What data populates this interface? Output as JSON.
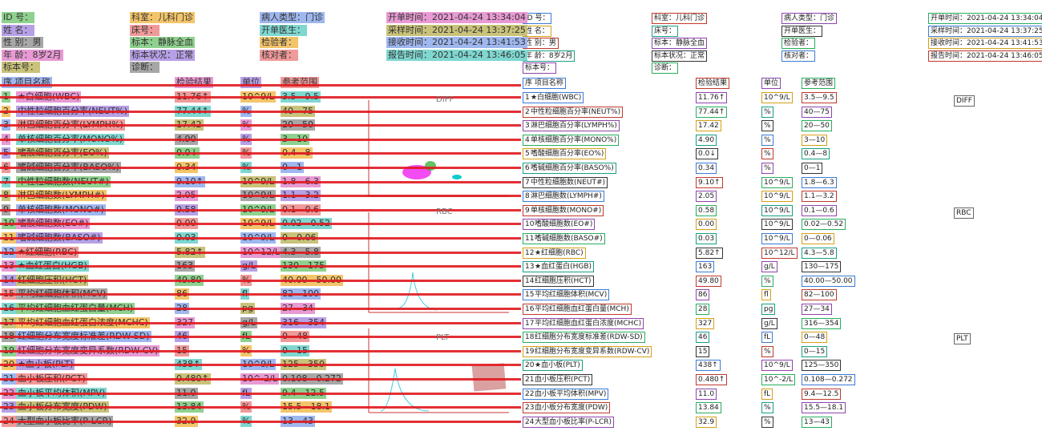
{
  "header": {
    "rows": [
      [
        "ID 号：",
        "科室：儿科门诊",
        "病人类型：门诊",
        "开单时间：2021-04-24 13:34:04"
      ],
      [
        "姓 名：",
        "床号：",
        "开单医生：",
        "采样时间：2021-04-24 13:37:25"
      ],
      [
        "性 别：男",
        "标本：静脉全血",
        "检验者：",
        "接收时间：2021-04-24 13:41:53"
      ],
      [
        "年 龄：8岁2月",
        "标本状况：正常",
        "核对者：",
        "报告时间：2021-04-24 13:46:05"
      ],
      [
        "标本号：",
        "诊断："
      ]
    ]
  },
  "table": {
    "columns": [
      "序 项目名称",
      "检验结果",
      "单位",
      "参考范围"
    ],
    "rows": [
      [
        "1",
        "★白细胞(WBC)",
        "11.76↑",
        "10^9/L",
        "3.5—9.5"
      ],
      [
        "2",
        "中性粒细胞百分率(NEUT%)",
        "77.44↑",
        "%",
        "40—75"
      ],
      [
        "3",
        "淋巴细胞百分率(LYMPH%)",
        "17.42",
        "%",
        "20—50"
      ],
      [
        "4",
        "单核细胞百分率(MONO%)",
        "4.90",
        "%",
        "3—10"
      ],
      [
        "5",
        "嗜酸细胞百分率(EO%)",
        "0.0↓",
        "%",
        "0.4—8"
      ],
      [
        "6",
        "嗜碱细胞百分率(BASO%)",
        "0.34",
        "%",
        "0—1"
      ],
      [
        "7",
        "中性粒细胞数(NEUT#)",
        "9.10↑",
        "10^9/L",
        "1.8—6.3"
      ],
      [
        "8",
        "淋巴细胞数(LYMPH#)",
        "2.05",
        "10^9/L",
        "1.1—3.2"
      ],
      [
        "9",
        "单核细胞数(MONO#)",
        "0.58",
        "10^9/L",
        "0.1—0.6"
      ],
      [
        "10",
        "嗜酸细胞数(EO#)",
        "0.00",
        "10^9/L",
        "0.02—0.52"
      ],
      [
        "11",
        "嗜碱细胞数(BASO#)",
        "0.03",
        "10^9/L",
        "0—0.06"
      ],
      [
        "12",
        "★红细胞(RBC)",
        "5.82↑",
        "10^12/L",
        "4.3—5.8"
      ],
      [
        "13",
        "★血红蛋白(HGB)",
        "163",
        "g/L",
        "130—175"
      ],
      [
        "14",
        "红细胞压积(HCT)",
        "49.80",
        "%",
        "40.00—50.00"
      ],
      [
        "15",
        "平均红细胞体积(MCV)",
        "86",
        "fl",
        "82—100"
      ],
      [
        "16",
        "平均红细胞血红蛋白量(MCH)",
        "28",
        "pg",
        "27—34"
      ],
      [
        "17",
        "平均红细胞血红蛋白浓度(MCHC)",
        "327",
        "g/L",
        "316—354"
      ],
      [
        "18",
        "红细胞分布宽度标准差(RDW-SD)",
        "46",
        "fL",
        "0—48"
      ],
      [
        "19",
        "红细胞分布宽度变异系数(RDW-CV)",
        "15",
        "%",
        "0—15"
      ],
      [
        "20",
        "★血小板(PLT)",
        "438↑",
        "10^9/L",
        "125—350"
      ],
      [
        "21",
        "血小板压积(PCT)",
        "0.480↑",
        "10^-2/L",
        "0.108—0.272"
      ],
      [
        "22",
        "血小板平均体积(MPV)",
        "11.0",
        "fL",
        "9.4—12.5"
      ],
      [
        "23",
        "血小板分布宽度(PDW)",
        "13.84",
        "%",
        "15.5—18.1"
      ],
      [
        "24",
        "大型血小板比率(P-LCR)",
        "32.9",
        "%",
        "13—43"
      ]
    ]
  },
  "graphs": [
    "DIFF",
    "RBC",
    "PLT"
  ]
}
